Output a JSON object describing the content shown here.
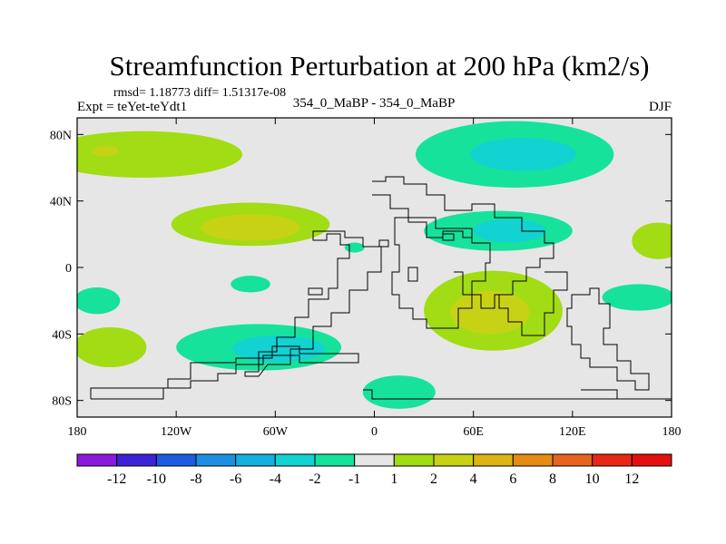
{
  "chart_data": {
    "type": "heatmap",
    "title": "Streamfunction Perturbation at 200 hPa (km2/s)",
    "stats_label": "rmsd= 1.18773 diff= 1.51317e-08",
    "expt_label": "Expt = teYet-teYdt1",
    "case_label": "354_0_MaBP - 354_0_MaBP",
    "season_label": "DJF",
    "x_ticks": [
      "180",
      "120W",
      "60W",
      "0",
      "60E",
      "120E",
      "180"
    ],
    "x_tick_values": [
      -180,
      -120,
      -60,
      0,
      60,
      120,
      180
    ],
    "y_ticks": [
      "80N",
      "40N",
      "0",
      "40S",
      "80S"
    ],
    "y_tick_values": [
      80,
      40,
      0,
      -40,
      -80
    ],
    "xlim": [
      -180,
      180
    ],
    "ylim": [
      -90,
      90
    ],
    "colorbar_labels": [
      "-12",
      "-10",
      "-8",
      "-6",
      "-4",
      "-2",
      "-1",
      "1",
      "2",
      "4",
      "6",
      "8",
      "10",
      "12"
    ],
    "colorbar_colors": [
      "#8a1bdc",
      "#3c23d6",
      "#1c5ce2",
      "#1c8fe2",
      "#14b0e0",
      "#12d2d2",
      "#17e29c",
      "#e6e6e6",
      "#a2dc14",
      "#c8d214",
      "#dcb414",
      "#e68c14",
      "#e6641e",
      "#e62814",
      "#e60f0f"
    ],
    "regions": [
      {
        "value": 1.5,
        "lon": -140,
        "lat": 68,
        "rlon": 60,
        "rlat": 14
      },
      {
        "value": 2.5,
        "lon": -163,
        "lat": 70,
        "rlon": 8,
        "rlat": 3
      },
      {
        "value": -1.5,
        "lon": 85,
        "lat": 68,
        "rlon": 60,
        "rlat": 20
      },
      {
        "value": -2.5,
        "lon": 90,
        "lat": 68,
        "rlon": 32,
        "rlat": 10
      },
      {
        "value": 1.5,
        "lon": -75,
        "lat": 26,
        "rlon": 48,
        "rlat": 13
      },
      {
        "value": 2.5,
        "lon": -75,
        "lat": 24,
        "rlon": 30,
        "rlat": 8
      },
      {
        "value": -1.5,
        "lon": 75,
        "lat": 22,
        "rlon": 45,
        "rlat": 12
      },
      {
        "value": -2.5,
        "lon": 82,
        "lat": 22,
        "rlon": 22,
        "rlat": 7
      },
      {
        "value": 1.5,
        "lon": 172,
        "lat": 16,
        "rlon": 16,
        "rlat": 11
      },
      {
        "value": 1.5,
        "lon": 72,
        "lat": -26,
        "rlon": 42,
        "rlat": 24
      },
      {
        "value": 2.5,
        "lon": 70,
        "lat": -27,
        "rlon": 24,
        "rlat": 13
      },
      {
        "value": -1.5,
        "lon": -70,
        "lat": -48,
        "rlon": 50,
        "rlat": 14
      },
      {
        "value": -2.5,
        "lon": -58,
        "lat": -49,
        "rlon": 28,
        "rlat": 8
      },
      {
        "value": 1.5,
        "lon": -160,
        "lat": -48,
        "rlon": 22,
        "rlat": 12
      },
      {
        "value": -1.5,
        "lon": -168,
        "lat": -20,
        "rlon": 14,
        "rlat": 8
      },
      {
        "value": -1.5,
        "lon": 15,
        "lat": -75,
        "rlon": 22,
        "rlat": 10
      },
      {
        "value": -1.5,
        "lon": 160,
        "lat": -18,
        "rlon": 22,
        "rlat": 8
      },
      {
        "value": -1.5,
        "lon": -75,
        "lat": -10,
        "rlon": 12,
        "rlat": 5
      },
      {
        "value": -1.5,
        "lon": -12,
        "lat": 12,
        "rlon": 6,
        "rlat": 3
      }
    ]
  }
}
